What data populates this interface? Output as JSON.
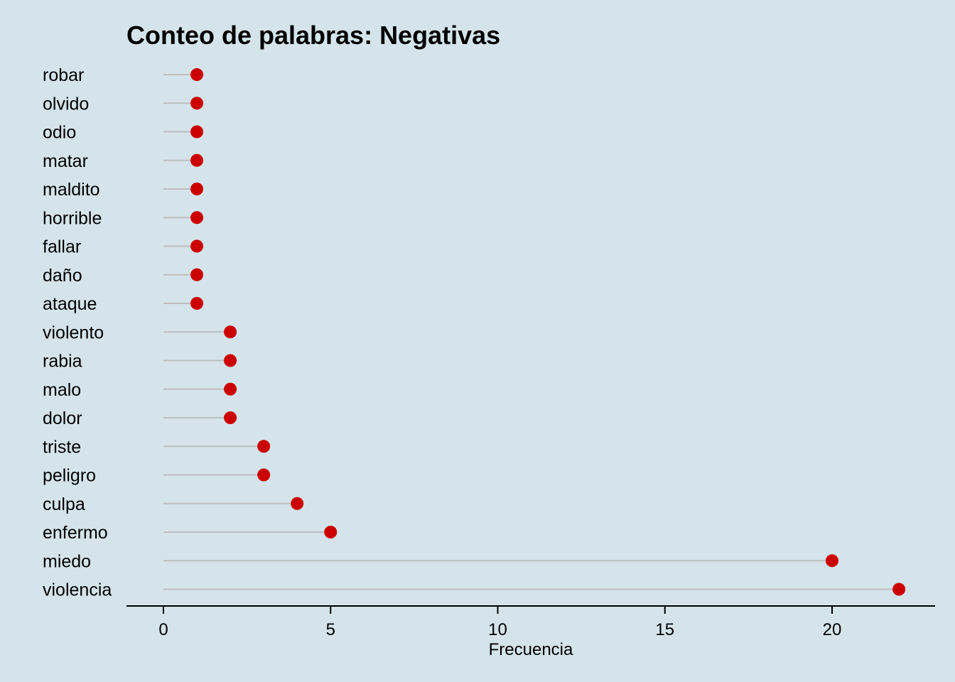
{
  "chart_data": {
    "type": "lollipop",
    "title": "Conteo de palabras: Negativas",
    "xlabel": "Frecuencia",
    "ylabel": "",
    "xlim": [
      0,
      22
    ],
    "xticks": [
      0,
      5,
      10,
      15,
      20
    ],
    "categories": [
      "robar",
      "olvido",
      "odio",
      "matar",
      "maldito",
      "horrible",
      "fallar",
      "daño",
      "ataque",
      "violento",
      "rabia",
      "malo",
      "dolor",
      "triste",
      "peligro",
      "culpa",
      "enfermo",
      "miedo",
      "violencia"
    ],
    "values": [
      1,
      1,
      1,
      1,
      1,
      1,
      1,
      1,
      1,
      2,
      2,
      2,
      2,
      3,
      3,
      4,
      5,
      20,
      22
    ],
    "colors": {
      "point": "#cc0000",
      "stem": "#bdbdbd",
      "background": "#d5e4eb",
      "axis": "#000000"
    },
    "grid": false,
    "legend": "none"
  }
}
